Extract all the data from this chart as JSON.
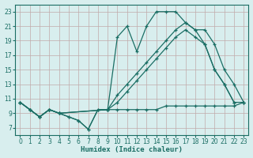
{
  "bg_color": "#d8eeee",
  "grid_color": "#c0aaaa",
  "line_color": "#1a6e64",
  "xlabel": "Humidex (Indice chaleur)",
  "ylim": [
    6,
    24
  ],
  "xlim": [
    -0.5,
    23.5
  ],
  "yticks": [
    7,
    9,
    11,
    13,
    15,
    17,
    19,
    21,
    23
  ],
  "xticks": [
    0,
    1,
    2,
    3,
    4,
    5,
    6,
    7,
    8,
    9,
    10,
    11,
    12,
    13,
    14,
    15,
    16,
    17,
    18,
    19,
    20,
    21,
    22,
    23
  ],
  "series": [
    {
      "x": [
        0,
        1,
        2,
        3,
        4,
        5,
        6,
        7,
        8,
        9,
        10,
        11,
        12,
        13,
        14,
        15,
        16,
        17,
        18,
        19,
        20,
        21,
        22
      ],
      "y": [
        10.5,
        9.5,
        8.5,
        9.5,
        9.0,
        8.5,
        8.0,
        6.8,
        9.5,
        9.5,
        19.5,
        21.0,
        17.5,
        21.0,
        23.0,
        23.0,
        23.0,
        21.5,
        20.5,
        18.5,
        15.0,
        13.0,
        10.5
      ]
    },
    {
      "x": [
        0,
        1,
        2,
        3,
        4,
        9,
        10,
        11,
        12,
        13,
        14,
        15,
        16,
        17,
        18,
        19,
        20,
        21,
        22,
        23
      ],
      "y": [
        10.5,
        9.5,
        8.5,
        9.5,
        9.0,
        9.5,
        11.5,
        13.0,
        14.5,
        16.0,
        17.5,
        19.0,
        20.5,
        21.5,
        20.5,
        20.5,
        18.5,
        15.0,
        13.0,
        10.5
      ]
    },
    {
      "x": [
        0,
        1,
        2,
        3,
        4,
        9,
        10,
        11,
        12,
        13,
        14,
        15,
        16,
        17,
        18,
        19,
        20,
        21,
        22,
        23
      ],
      "y": [
        10.5,
        9.5,
        8.5,
        9.5,
        9.0,
        9.5,
        10.5,
        12.0,
        13.5,
        15.0,
        16.5,
        18.0,
        19.5,
        20.5,
        19.5,
        18.5,
        15.0,
        13.0,
        10.5,
        10.5
      ]
    },
    {
      "x": [
        0,
        1,
        2,
        3,
        4,
        5,
        6,
        7,
        8,
        9,
        10,
        11,
        12,
        13,
        14,
        15,
        16,
        17,
        18,
        19,
        20,
        21,
        22,
        23
      ],
      "y": [
        10.5,
        9.5,
        8.5,
        9.5,
        9.0,
        8.5,
        8.0,
        6.8,
        9.5,
        9.5,
        9.5,
        9.5,
        9.5,
        9.5,
        9.5,
        10.0,
        10.0,
        10.0,
        10.0,
        10.0,
        10.0,
        10.0,
        10.0,
        10.5
      ]
    }
  ]
}
